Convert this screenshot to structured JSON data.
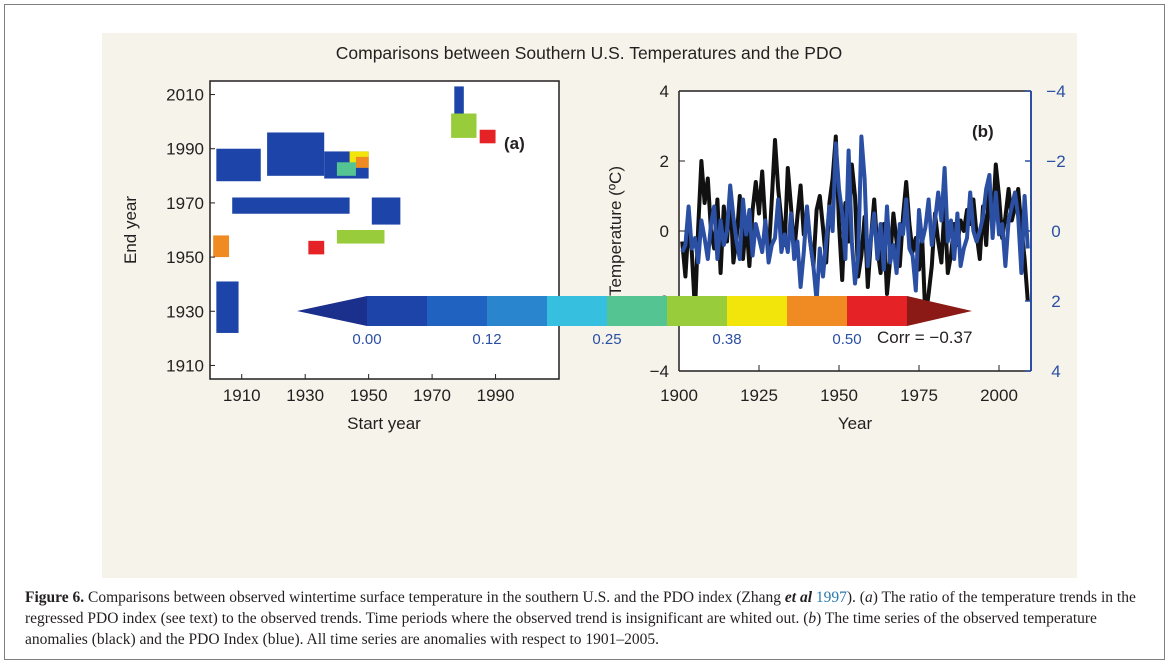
{
  "figure_title": "Comparisons between Southern U.S. Temperatures and the PDO",
  "chart_data": [
    {
      "type": "heatmap",
      "panel_label": "(a)",
      "xlabel": "Start year",
      "ylabel": "End year",
      "xlim": [
        1900,
        2010
      ],
      "ylim": [
        1905,
        2015
      ],
      "xticks": [
        "1910",
        "1930",
        "1950",
        "1970",
        "1990"
      ],
      "yticks": [
        "1910",
        "1930",
        "1950",
        "1970",
        "1990",
        "2010"
      ],
      "colorbar": {
        "ticks": [
          "0.00",
          "0.12",
          "0.25",
          "0.38",
          "0.50"
        ],
        "range": [
          0,
          0.62
        ],
        "extend": "both",
        "colors": [
          "#1b2f8c",
          "#1d44a8",
          "#2062bf",
          "#2a85cf",
          "#37bfe0",
          "#55c493",
          "#98cc3a",
          "#f2e50c",
          "#f08a23",
          "#e52225",
          "#8b1a16"
        ]
      },
      "regions": [
        {
          "start": [
            1977,
            1980
          ],
          "end": [
            1996,
            2013
          ],
          "value": 0.0
        },
        {
          "start": [
            1902,
            1916
          ],
          "end": [
            1978,
            1990
          ],
          "value": 0.0
        },
        {
          "start": [
            1918,
            1936
          ],
          "end": [
            1980,
            1996
          ],
          "value": 0.0
        },
        {
          "start": [
            1936,
            1950
          ],
          "end": [
            1979,
            1989
          ],
          "value": 0.05
        },
        {
          "start": [
            1944,
            1950
          ],
          "end": [
            1983,
            1989
          ],
          "value": 0.45
        },
        {
          "start": [
            1946,
            1950
          ],
          "end": [
            1983,
            1987
          ],
          "value": 0.55
        },
        {
          "start": [
            1940,
            1946
          ],
          "end": [
            1980,
            1985
          ],
          "value": 0.33
        },
        {
          "start": [
            1951,
            1960
          ],
          "end": [
            1962,
            1972
          ],
          "value": 0.0
        },
        {
          "start": [
            1907,
            1944
          ],
          "end": [
            1966,
            1972
          ],
          "value": 0.0
        },
        {
          "start": [
            1931,
            1936
          ],
          "end": [
            1951,
            1956
          ],
          "value": 0.6
        },
        {
          "start": [
            1901,
            1906
          ],
          "end": [
            1950,
            1958
          ],
          "value": 0.55
        },
        {
          "start": [
            1902,
            1909
          ],
          "end": [
            1922,
            1941
          ],
          "value": 0.0
        },
        {
          "start": [
            1940,
            1955
          ],
          "end": [
            1955,
            1960
          ],
          "value": 0.4
        },
        {
          "start": [
            1985,
            1990
          ],
          "end": [
            1992,
            1997
          ],
          "value": 0.58
        },
        {
          "start": [
            1976,
            1984
          ],
          "end": [
            1994,
            2003
          ],
          "value": 0.38
        }
      ]
    },
    {
      "type": "line",
      "panel_label": "(b)",
      "xlabel": "Year",
      "ylabel": "Temperature (ºC)",
      "xlim": [
        1900,
        2010
      ],
      "ylim": [
        -4,
        4
      ],
      "xticks": [
        "1900",
        "1925",
        "1950",
        "1975",
        "2000"
      ],
      "yticks": [
        "4",
        "2",
        "0",
        "−2",
        "−4"
      ],
      "y2ticks": [
        "−4",
        "−2",
        "0",
        "2",
        "4"
      ],
      "y2_inverted": true,
      "annotation": "Corr = −0.37",
      "x": [
        1901,
        1902,
        1903,
        1904,
        1905,
        1906,
        1907,
        1908,
        1909,
        1910,
        1911,
        1912,
        1913,
        1914,
        1915,
        1916,
        1917,
        1918,
        1919,
        1920,
        1921,
        1922,
        1923,
        1924,
        1925,
        1926,
        1927,
        1928,
        1929,
        1930,
        1931,
        1932,
        1933,
        1934,
        1935,
        1936,
        1937,
        1938,
        1939,
        1940,
        1941,
        1942,
        1943,
        1944,
        1945,
        1946,
        1947,
        1948,
        1949,
        1950,
        1951,
        1952,
        1953,
        1954,
        1955,
        1956,
        1957,
        1958,
        1959,
        1960,
        1961,
        1962,
        1963,
        1964,
        1965,
        1966,
        1967,
        1968,
        1969,
        1970,
        1971,
        1972,
        1973,
        1974,
        1975,
        1976,
        1977,
        1978,
        1979,
        1980,
        1981,
        1982,
        1983,
        1984,
        1985,
        1986,
        1987,
        1988,
        1989,
        1990,
        1991,
        1992,
        1993,
        1994,
        1995,
        1996,
        1997,
        1998,
        1999,
        2000,
        2001,
        2002,
        2003,
        2004,
        2005,
        2006,
        2007,
        2008,
        2009
      ],
      "series": [
        {
          "color": "#111111",
          "values": [
            -0.3,
            -1.3,
            0.2,
            -0.6,
            -2.3,
            0.1,
            2.0,
            0.8,
            1.5,
            0.0,
            -0.5,
            0.9,
            -1.2,
            0.7,
            -0.3,
            1.1,
            -0.9,
            -0.2,
            1.0,
            -0.8,
            0.3,
            -1.0,
            0.6,
            1.4,
            0.5,
            1.7,
            0.2,
            -0.7,
            0.9,
            2.6,
            1.2,
            0.3,
            -0.4,
            1.8,
            0.7,
            -0.6,
            0.4,
            1.3,
            -0.1,
            0.5,
            -0.3,
            -1.0,
            0.6,
            1.0,
            0.1,
            -0.9,
            0.8,
            1.5,
            2.7,
            0.2,
            -1.4,
            0.8,
            -0.3,
            1.9,
            1.0,
            -1.3,
            -0.7,
            0.4,
            -1.6,
            -0.2,
            0.9,
            -0.5,
            -1.2,
            0.2,
            -1.8,
            -0.8,
            0.5,
            -0.3,
            -1.0,
            0.4,
            1.4,
            0.2,
            -0.6,
            -0.2,
            -1.1,
            -0.2,
            -2.5,
            -1.8,
            -1.0,
            0.5,
            -0.3,
            -0.9,
            0.7,
            -1.2,
            -0.7,
            0.2,
            -0.4,
            0.3,
            0.0,
            0.6,
            0.2,
            0.9,
            -0.1,
            -0.8,
            0.7,
            -0.4,
            1.4,
            0.2,
            1.9,
            1.0,
            -0.2,
            0.4,
            1.2,
            0.3,
            0.7,
            1.2,
            0.1,
            -0.8,
            -2.0
          ]
        },
        {
          "color": "#2a4fa3",
          "axis": "right",
          "values": [
            0.6,
            0.4,
            -0.7,
            0.5,
            0.2,
            0.9,
            -0.3,
            0.2,
            0.8,
            -0.2,
            -0.7,
            0.8,
            -0.3,
            0.4,
            0.0,
            -1.3,
            -0.4,
            0.3,
            0.8,
            -0.9,
            0.1,
            -0.6,
            0.7,
            -0.2,
            0.2,
            0.6,
            -0.3,
            0.9,
            0.4,
            0.2,
            -0.9,
            0.6,
            0.1,
            0.6,
            -0.5,
            0.8,
            0.3,
            1.6,
            0.6,
            -0.7,
            0.3,
            1.0,
            2.0,
            0.5,
            1.3,
            0.3,
            -0.7,
            0.0,
            -2.5,
            -1.2,
            -0.5,
            0.8,
            -2.3,
            0.3,
            1.5,
            0.7,
            -2.7,
            -1.5,
            1.0,
            0.2,
            -0.5,
            0.8,
            -0.2,
            1.1,
            -0.7,
            0.9,
            0.4,
            1.2,
            -0.2,
            0.1,
            -0.9,
            0.5,
            0.7,
            1.7,
            -0.6,
            0.3,
            -0.1,
            -0.9,
            0.4,
            -0.3,
            -1.1,
            -0.3,
            -1.8,
            0.3,
            -0.3,
            0.8,
            -0.5,
            1.0,
            0.5,
            0.2,
            -1.1,
            0.0,
            0.3,
            0.0,
            -0.4,
            -1.2,
            -1.6,
            0.2,
            -1.1,
            0.1,
            -0.2,
            1.0,
            -0.3,
            -0.7,
            -1.1,
            -0.4,
            1.2,
            -1.0,
            0.5
          ]
        }
      ]
    }
  ],
  "caption": {
    "label": "Figure 6.",
    "part1": " Comparisons between observed wintertime surface temperature in the southern U.S. and the PDO index (Zhang ",
    "etal": "et al",
    "space": " ",
    "ref_year": "1997",
    "part2": "). (",
    "a_label": "a",
    "part3": ") The ratio of the temperature trends in the regressed PDO index (see text) to the observed trends. Time periods where the observed trend is insignificant are whited out. (",
    "b_label": "b",
    "part4": ") The time series of the observed temperature anomalies (black) and the PDO Index (blue). All time series are anomalies with respect to 1901–2005."
  }
}
